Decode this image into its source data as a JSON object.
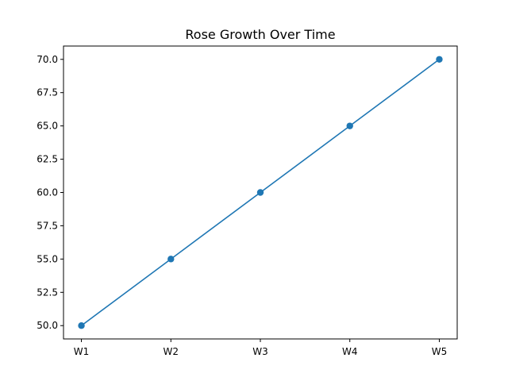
{
  "chart_data": {
    "type": "line",
    "title": "Rose Growth Over Time",
    "xlabel": "",
    "ylabel": "",
    "categories": [
      "W1",
      "W2",
      "W3",
      "W4",
      "W5"
    ],
    "series": [
      {
        "values": [
          50,
          55,
          60,
          65,
          70
        ],
        "color": "#1f77b4",
        "marker": "circle"
      }
    ],
    "ylim": [
      49,
      71
    ],
    "yticks": [
      "50.0",
      "52.5",
      "55.0",
      "57.5",
      "60.0",
      "62.5",
      "65.0",
      "67.5",
      "70.0"
    ],
    "grid": false,
    "legend": "none"
  }
}
